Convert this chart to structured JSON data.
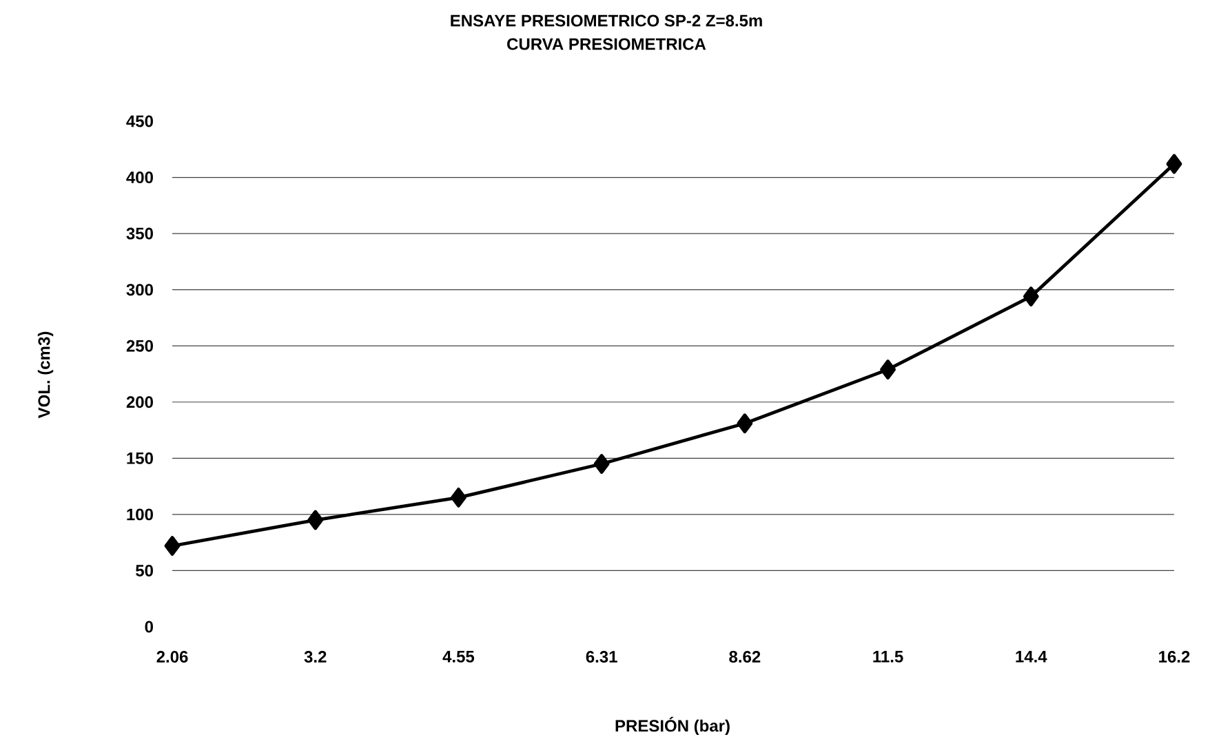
{
  "chart_data": {
    "type": "line",
    "title": "ENSAYE PRESIOMETRICO SP-2  Z=8.5m",
    "subtitle": "CURVA PRESIOMETRICA",
    "xlabel": "PRESIÓN (bar)",
    "ylabel": "VOL. (cm3)",
    "categories": [
      "2.06",
      "3.2",
      "4.55",
      "6.31",
      "8.62",
      "11.5",
      "14.4",
      "16.2"
    ],
    "series": [
      {
        "color": "#000000",
        "values": [
          72,
          95,
          115,
          145,
          181,
          229,
          294,
          412
        ]
      }
    ],
    "ylim": [
      0,
      450
    ],
    "yticks": [
      0,
      50,
      100,
      150,
      200,
      250,
      300,
      350,
      400,
      450
    ],
    "grid": "y",
    "marker": "diamond",
    "line_style": "solid"
  }
}
